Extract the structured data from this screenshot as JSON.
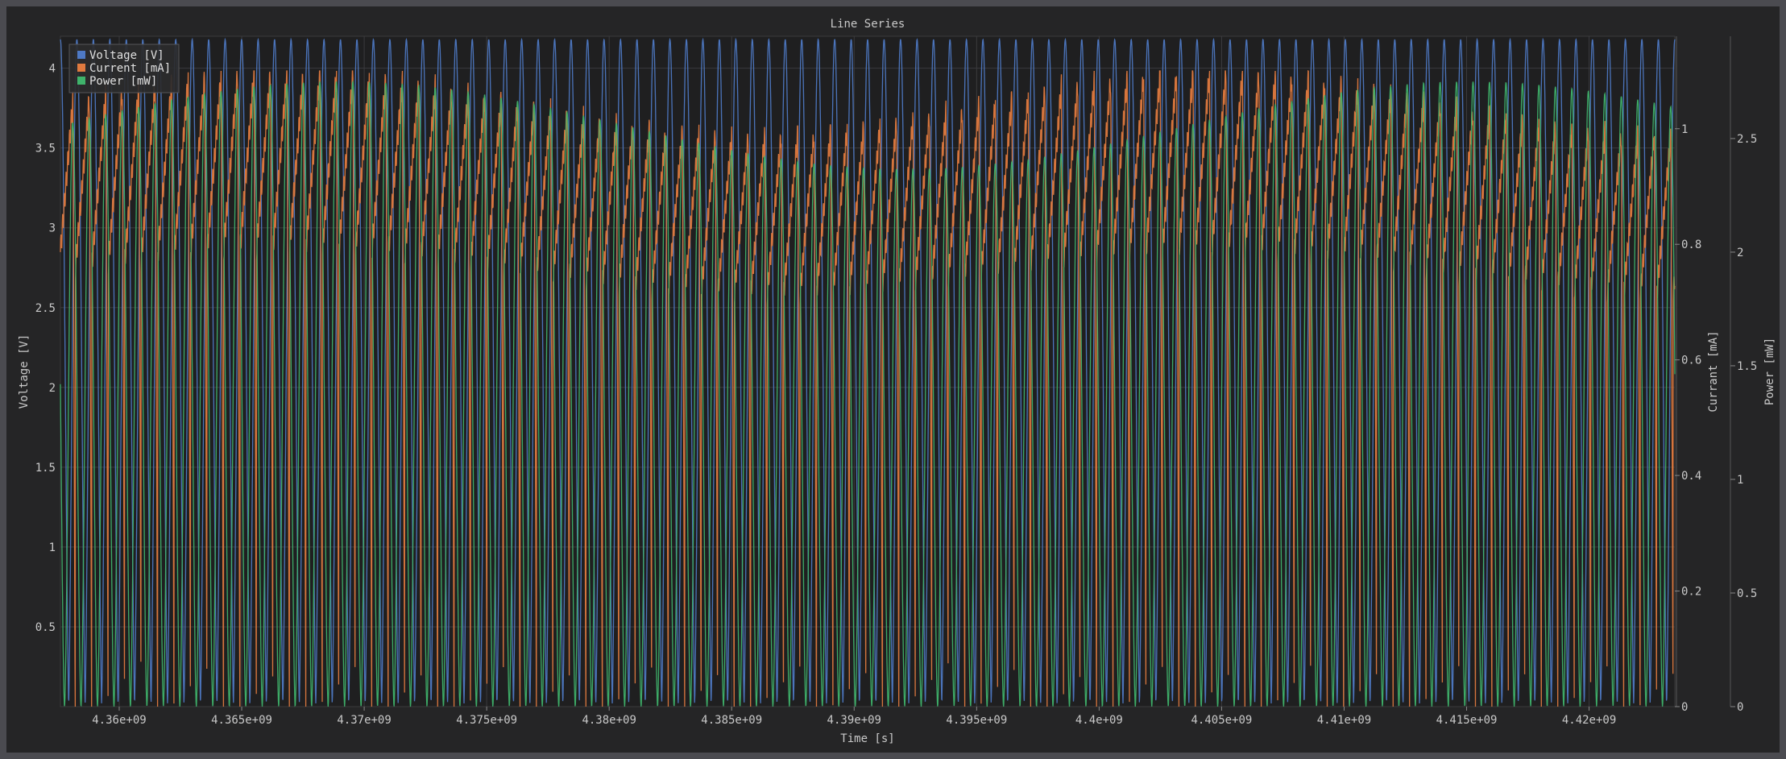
{
  "chart_data": {
    "type": "line",
    "title": "Line Series",
    "xlabel": "Time [s]",
    "xlim": [
      4357600000,
      4423500000
    ],
    "x_ticks": [
      {
        "value": 4360000000,
        "label": "4.36e+09"
      },
      {
        "value": 4365000000,
        "label": "4.365e+09"
      },
      {
        "value": 4370000000,
        "label": "4.37e+09"
      },
      {
        "value": 4375000000,
        "label": "4.375e+09"
      },
      {
        "value": 4380000000,
        "label": "4.38e+09"
      },
      {
        "value": 4385000000,
        "label": "4.385e+09"
      },
      {
        "value": 4390000000,
        "label": "4.39e+09"
      },
      {
        "value": 4395000000,
        "label": "4.395e+09"
      },
      {
        "value": 4400000000,
        "label": "4.4e+09"
      },
      {
        "value": 4405000000,
        "label": "4.405e+09"
      },
      {
        "value": 4410000000,
        "label": "4.41e+09"
      },
      {
        "value": 4415000000,
        "label": "4.415e+09"
      },
      {
        "value": 4420000000,
        "label": "4.42e+09"
      }
    ],
    "axes": {
      "voltage": {
        "label": "Voltage [V]",
        "position": "left",
        "range": [
          0,
          4.2
        ],
        "ticks": [
          {
            "value": 0.5,
            "label": "0.5"
          },
          {
            "value": 1,
            "label": "1"
          },
          {
            "value": 1.5,
            "label": "1.5"
          },
          {
            "value": 2,
            "label": "2"
          },
          {
            "value": 2.5,
            "label": "2.5"
          },
          {
            "value": 3,
            "label": "3"
          },
          {
            "value": 3.5,
            "label": "3.5"
          },
          {
            "value": 4,
            "label": "4"
          }
        ]
      },
      "current": {
        "label": "Currant [mA]",
        "position": "right",
        "range": [
          0,
          1.16
        ],
        "ticks": [
          {
            "value": 0,
            "label": "0"
          },
          {
            "value": 0.2,
            "label": "0.2"
          },
          {
            "value": 0.4,
            "label": "0.4"
          },
          {
            "value": 0.6,
            "label": "0.6"
          },
          {
            "value": 0.8,
            "label": "0.8"
          },
          {
            "value": 1,
            "label": "1"
          }
        ]
      },
      "power": {
        "label": "Power [mW]",
        "position": "right-outer",
        "range": [
          0,
          2.95
        ],
        "ticks": [
          {
            "value": 0,
            "label": "0"
          },
          {
            "value": 0.5,
            "label": "0.5"
          },
          {
            "value": 1,
            "label": "1"
          },
          {
            "value": 1.5,
            "label": "1.5"
          },
          {
            "value": 2,
            "label": "2"
          },
          {
            "value": 2.5,
            "label": "2.5"
          }
        ]
      }
    },
    "legend_placement": "top-left",
    "grid": true,
    "series": [
      {
        "name": "Voltage [V]",
        "axis": "voltage",
        "color": "#4e79c4",
        "cycles": 98,
        "min": 0.02,
        "max": 4.18,
        "waveform": "periodic"
      },
      {
        "name": "Current [mA]",
        "axis": "current",
        "color": "#e07a3f",
        "cycles": 98,
        "min": 0.0,
        "max": 1.1,
        "waveform": "periodic-sawtooth"
      },
      {
        "name": "Power [mW]",
        "axis": "power",
        "color": "#3fb36b",
        "cycles": 98,
        "min": 0.0,
        "max": 2.75,
        "waveform": "periodic"
      }
    ]
  }
}
